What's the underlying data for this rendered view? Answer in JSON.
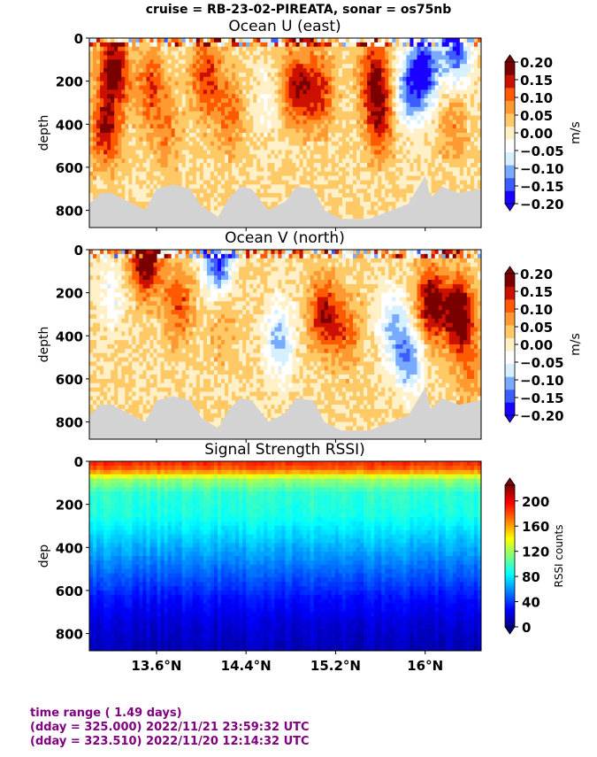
{
  "suptitle": "cruise = RB-23-02-PIREATA,  sonar = os75nb",
  "footer": {
    "line1": "time range ( 1.49 days)",
    "line2": "(dday = 325.000) 2022/11/21 23:59:32 UTC",
    "line3": "(dday = 323.510) 2022/11/20 12:14:32 UTC"
  },
  "colors": {
    "bottom_mask": "#d3d3d3",
    "footer_text": "#800080",
    "diverging": [
      "#1a00ff",
      "#3c5cff",
      "#78aaff",
      "#d6f0ff",
      "#ffffff",
      "#fff0c8",
      "#ffc966",
      "#ff9a33",
      "#ff5a00",
      "#cc1000",
      "#7a0000"
    ],
    "jet": [
      "#00007f",
      "#0000ff",
      "#007fff",
      "#00ffff",
      "#7fff7f",
      "#ffff00",
      "#ff7f00",
      "#ff0000",
      "#7f0000"
    ]
  },
  "chart_data": [
    {
      "type": "heatmap",
      "title": "Ocean U (east)",
      "xlabel": "",
      "ylabel": "depth",
      "colorbar_label": "m/s",
      "colorbar_ticks": [
        "0.20",
        "0.15",
        "0.10",
        "0.05",
        "0.00",
        "−0.05",
        "−0.10",
        "−0.15",
        "−0.20"
      ],
      "clim": [
        -0.2,
        0.2
      ],
      "colormap": "diverging",
      "xlim": [
        13.0,
        16.5
      ],
      "ylim": [
        880,
        0
      ],
      "yticks": [
        "0",
        "200",
        "400",
        "600",
        "800"
      ],
      "xticks": [
        "13.6°N",
        "14.4°N",
        "15.2°N",
        "16°N"
      ],
      "xtick_values": [
        13.6,
        14.4,
        15.2,
        16.0
      ],
      "features": [
        {
          "x": 13.22,
          "d": 140,
          "v": 0.18
        },
        {
          "x": 13.15,
          "d": 420,
          "v": 0.14
        },
        {
          "x": 13.55,
          "d": 230,
          "v": 0.1
        },
        {
          "x": 13.7,
          "d": 440,
          "v": 0.06
        },
        {
          "x": 14.05,
          "d": 180,
          "v": 0.12
        },
        {
          "x": 14.25,
          "d": 350,
          "v": 0.08
        },
        {
          "x": 14.6,
          "d": 300,
          "v": -0.04
        },
        {
          "x": 14.85,
          "d": 230,
          "v": 0.14
        },
        {
          "x": 15.05,
          "d": 250,
          "v": 0.12
        },
        {
          "x": 15.55,
          "d": 180,
          "v": 0.14
        },
        {
          "x": 15.6,
          "d": 380,
          "v": 0.12
        },
        {
          "x": 15.85,
          "d": 250,
          "v": -0.14
        },
        {
          "x": 16.0,
          "d": 150,
          "v": -0.2
        },
        {
          "x": 16.25,
          "d": 400,
          "v": 0.06
        },
        {
          "x": 16.28,
          "d": 50,
          "v": -0.18
        }
      ]
    },
    {
      "type": "heatmap",
      "title": "Ocean V (north)",
      "xlabel": "",
      "ylabel": "depth",
      "colorbar_label": "m/s",
      "colorbar_ticks": [
        "0.20",
        "0.15",
        "0.10",
        "0.05",
        "0.00",
        "−0.05",
        "−0.10",
        "−0.15",
        "−0.20"
      ],
      "clim": [
        -0.2,
        0.2
      ],
      "colormap": "diverging",
      "xlim": [
        13.0,
        16.5
      ],
      "ylim": [
        880,
        0
      ],
      "yticks": [
        "0",
        "200",
        "400",
        "600",
        "800"
      ],
      "xticks": [
        "13.6°N",
        "14.4°N",
        "15.2°N",
        "16°N"
      ],
      "xtick_values": [
        13.6,
        14.4,
        15.2,
        16.0
      ],
      "features": [
        {
          "x": 13.2,
          "d": 200,
          "v": -0.06
        },
        {
          "x": 13.8,
          "d": 250,
          "v": 0.1
        },
        {
          "x": 14.2,
          "d": 350,
          "v": 0.04
        },
        {
          "x": 14.7,
          "d": 420,
          "v": -0.12
        },
        {
          "x": 15.1,
          "d": 300,
          "v": 0.14
        },
        {
          "x": 15.3,
          "d": 380,
          "v": 0.08
        },
        {
          "x": 15.7,
          "d": 350,
          "v": -0.1
        },
        {
          "x": 15.85,
          "d": 500,
          "v": -0.14
        },
        {
          "x": 16.05,
          "d": 250,
          "v": 0.18
        },
        {
          "x": 16.3,
          "d": 300,
          "v": 0.2
        },
        {
          "x": 16.4,
          "d": 550,
          "v": 0.06
        },
        {
          "x": 13.5,
          "d": 30,
          "v": 0.2
        },
        {
          "x": 14.15,
          "d": 30,
          "v": -0.2
        }
      ]
    },
    {
      "type": "heatmap",
      "title": "Signal Strength RSSI)",
      "xlabel": "",
      "ylabel": "dep",
      "colorbar_label": "RSSI counts",
      "colorbar_ticks": [
        "200",
        "160",
        "120",
        "80",
        "40",
        "0"
      ],
      "clim": [
        0,
        225
      ],
      "colormap": "jet",
      "xlim": [
        13.0,
        16.5
      ],
      "ylim": [
        880,
        0
      ],
      "yticks": [
        "0",
        "200",
        "400",
        "600",
        "800"
      ],
      "xticks": [
        "13.6°N",
        "14.4°N",
        "15.2°N",
        "16°N"
      ],
      "xtick_values": [
        13.6,
        14.4,
        15.2,
        16.0
      ],
      "profile": [
        {
          "d": 0,
          "v": 190
        },
        {
          "d": 40,
          "v": 175
        },
        {
          "d": 80,
          "v": 120
        },
        {
          "d": 150,
          "v": 95
        },
        {
          "d": 250,
          "v": 90
        },
        {
          "d": 350,
          "v": 75
        },
        {
          "d": 450,
          "v": 60
        },
        {
          "d": 550,
          "v": 45
        },
        {
          "d": 650,
          "v": 30
        },
        {
          "d": 750,
          "v": 20
        },
        {
          "d": 880,
          "v": 12
        }
      ]
    }
  ]
}
